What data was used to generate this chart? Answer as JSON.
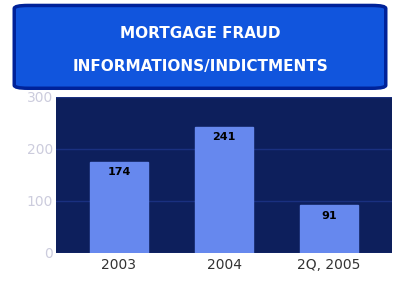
{
  "categories": [
    "2003",
    "2004",
    "2Q, 2005"
  ],
  "values": [
    174,
    241,
    91
  ],
  "bar_color": "#6688ee",
  "plot_bg_color": "#0d1f5c",
  "figure_bg_color": "#ffffff",
  "title_line1": "MORTGAGE FRAUD",
  "title_line2": "INFORMATIONS/INDICTMENTS",
  "title_bg_color": "#1155dd",
  "title_bg_dark": "#002299",
  "title_text_color": "#ffffff",
  "ytick_color": "#ccccdd",
  "xtick_color": "#333333",
  "ylim": [
    0,
    300
  ],
  "yticks": [
    0,
    100,
    200,
    300
  ],
  "bar_width": 0.55,
  "value_label_color": "#000000",
  "grid_color": "#1a3080",
  "axis_label_fontsize": 10,
  "value_fontsize": 8,
  "title_fontsize": 11
}
